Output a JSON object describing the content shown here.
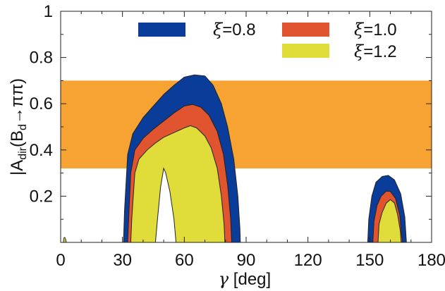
{
  "chart_data": {
    "type": "area",
    "xlabel": "γ [deg]",
    "ylabel": "|A_dir(B_d→ππ)|",
    "ylabel_parts": {
      "bar": "|",
      "A": "A",
      "A_sub": "dir",
      "paren_open": "(B",
      "B_sub": "d",
      "arrow": "→ππ)"
    },
    "xlabel_parts": {
      "gamma": "γ",
      "unit": " [deg]"
    },
    "xlim": [
      0,
      180
    ],
    "ylim": [
      0,
      1
    ],
    "x_ticks": [
      "0",
      "30",
      "60",
      "90",
      "120",
      "150",
      "180"
    ],
    "y_ticks": [
      "0.2",
      "0.4",
      "0.6",
      "0.8",
      "1"
    ],
    "band": {
      "y_low": 0.32,
      "y_high": 0.7,
      "color": "#f7a334"
    },
    "legend_placement": "top",
    "series": [
      {
        "name": "ξ=0.8",
        "name_parts": {
          "xi": "ξ",
          "rest": "=0.8"
        },
        "color": "#0a3d99",
        "regions": [
          [
            [
              30.5,
              0
            ],
            [
              31,
              0.14
            ],
            [
              32.5,
              0.38
            ],
            [
              35,
              0.47
            ],
            [
              40,
              0.54
            ],
            [
              45,
              0.59
            ],
            [
              50,
              0.64
            ],
            [
              55,
              0.68
            ],
            [
              60,
              0.715
            ],
            [
              65,
              0.725
            ],
            [
              70,
              0.72
            ],
            [
              74,
              0.68
            ],
            [
              78,
              0.6
            ],
            [
              81,
              0.5
            ],
            [
              84,
              0.36
            ],
            [
              86,
              0.2
            ],
            [
              87,
              0.06
            ],
            [
              87.2,
              0
            ]
          ],
          [
            [
              149,
              0
            ],
            [
              149.5,
              0.1
            ],
            [
              151,
              0.2
            ],
            [
              153,
              0.26
            ],
            [
              156,
              0.285
            ],
            [
              159,
              0.29
            ],
            [
              162,
              0.27
            ],
            [
              165,
              0.21
            ],
            [
              167,
              0.11
            ],
            [
              167.8,
              0
            ]
          ]
        ]
      },
      {
        "name": "ξ=1.0",
        "name_parts": {
          "xi": "ξ",
          "rest": "=1.0"
        },
        "color": "#e05530",
        "regions": [
          [
            [
              32.5,
              0
            ],
            [
              33,
              0.1
            ],
            [
              34,
              0.3
            ],
            [
              36,
              0.4
            ],
            [
              40,
              0.45
            ],
            [
              45,
              0.49
            ],
            [
              50,
              0.525
            ],
            [
              55,
              0.56
            ],
            [
              60,
              0.59
            ],
            [
              64,
              0.597
            ],
            [
              68,
              0.585
            ],
            [
              72,
              0.55
            ],
            [
              76,
              0.48
            ],
            [
              79,
              0.38
            ],
            [
              81,
              0.25
            ],
            [
              82.5,
              0.1
            ],
            [
              83,
              0
            ]
          ],
          [
            [
              151.5,
              0
            ],
            [
              152,
              0.09
            ],
            [
              153.5,
              0.16
            ],
            [
              155.5,
              0.2
            ],
            [
              158,
              0.222
            ],
            [
              160,
              0.22
            ],
            [
              162.5,
              0.19
            ],
            [
              164.5,
              0.12
            ],
            [
              165.8,
              0
            ]
          ]
        ]
      },
      {
        "name": "ξ=1.2",
        "name_parts": {
          "xi": "ξ",
          "rest": "=1.2"
        },
        "color": "#e0dc3a",
        "regions": [
          [
            [
              34,
              0
            ],
            [
              34.5,
              0.1
            ],
            [
              36,
              0.3
            ],
            [
              38,
              0.36
            ],
            [
              42,
              0.4
            ],
            [
              46,
              0.43
            ],
            [
              50,
              0.455
            ],
            [
              55,
              0.475
            ],
            [
              60,
              0.495
            ],
            [
              63,
              0.505
            ],
            [
              66,
              0.495
            ],
            [
              70,
              0.46
            ],
            [
              73,
              0.41
            ],
            [
              76,
              0.32
            ],
            [
              78,
              0.2
            ],
            [
              79.3,
              0.08
            ],
            [
              79.7,
              0
            ]
          ],
          [
            [
              154,
              0
            ],
            [
              154.5,
              0.08
            ],
            [
              156,
              0.13
            ],
            [
              158,
              0.17
            ],
            [
              160,
              0.185
            ],
            [
              162,
              0.17
            ],
            [
              163.5,
              0.12
            ],
            [
              164.8,
              0.05
            ],
            [
              165.2,
              0
            ]
          ]
        ]
      }
    ],
    "white_hole": [
      [
        46,
        0
      ],
      [
        47,
        0.1
      ],
      [
        48.5,
        0.24
      ],
      [
        50,
        0.32
      ],
      [
        51,
        0.3
      ],
      [
        53,
        0.22
      ],
      [
        55,
        0.1
      ],
      [
        56,
        0
      ]
    ]
  }
}
